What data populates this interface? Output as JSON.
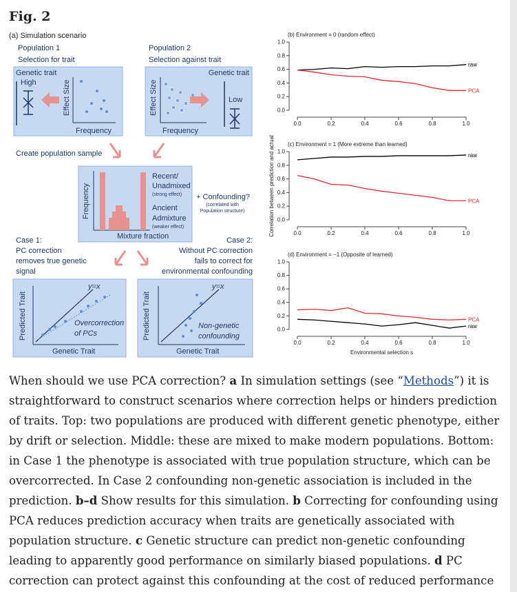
{
  "figure_label": "Fig. 2",
  "diagram": {
    "label": "(a) Simulation scenario",
    "pop1": "Population 1",
    "pop1_sel": "Selection for trait",
    "pop2": "Population 2",
    "pop2_sel": "Selection against trait",
    "b1_trait": "Genetic trait",
    "b1_high": "High",
    "b1_effect": "Effect Size",
    "b1_freq": "Frequency",
    "b2_trait": "Genetic trait",
    "b2_effect": "Effect Size",
    "b2_low": "Low",
    "b2_freq": "Frequency",
    "sample": "Create population sample",
    "m_recent1": "Recent/",
    "m_recent2": "Unadmixed",
    "m_strong": "(strong effect)",
    "m_anc1": "Ancient",
    "m_anc2": "Admixture",
    "m_weak": "(weaker effect)",
    "m_freq": "Frequency",
    "m_mix": "Mixture fraction",
    "conf1": "+ Confounding?",
    "conf2": "(correlated with",
    "conf3": "Population structure)",
    "case1_1": "Case 1:",
    "case1_2": "PC correction",
    "case1_3": "removes true genetic",
    "case1_4": "signal",
    "case2_1": "Case 2:",
    "case2_2": "Without PC correction",
    "case2_3": "fails to correct for",
    "case2_4": "environmental confounding",
    "b4_yx": "y=x",
    "b4_pred": "Predicted Trait",
    "b4_over1": "Overcorrection",
    "b4_over2": "of PCs",
    "b4_gen": "Genetic Trait",
    "b5_yx": "y=x",
    "b5_pred": "Predicted Trait",
    "b5_non1": "Non-genetic",
    "b5_non2": "confounding",
    "b5_gen": "Genetic Trait"
  },
  "chart_data": [
    {
      "type": "line",
      "title": "(b) Environment = 0 (random effect)",
      "x": [
        0,
        0.1,
        0.2,
        0.3,
        0.4,
        0.5,
        0.6,
        0.7,
        0.8,
        0.9,
        1.0
      ],
      "series": [
        {
          "name": "raw",
          "color": "#000000",
          "values": [
            0.59,
            0.6,
            0.62,
            0.61,
            0.64,
            0.63,
            0.64,
            0.64,
            0.65,
            0.65,
            0.67
          ]
        },
        {
          "name": "PCA",
          "color": "#e8292b",
          "values": [
            0.59,
            0.56,
            0.52,
            0.5,
            0.49,
            0.44,
            0.42,
            0.39,
            0.33,
            0.29,
            0.29
          ]
        }
      ],
      "xlim": [
        0,
        1
      ],
      "xticks": [
        {
          "value": 0,
          "label": "0.0"
        },
        {
          "value": 0.2,
          "label": "0.2"
        },
        {
          "value": 0.4,
          "label": "0.4"
        },
        {
          "value": 0.6,
          "label": "0.6"
        },
        {
          "value": 0.8,
          "label": "0.8"
        },
        {
          "value": 1,
          "label": "1.0"
        }
      ],
      "ylim": [
        0,
        1
      ],
      "yticks": [
        {
          "value": 0,
          "label": "0.0"
        },
        {
          "value": 0.2,
          "label": "0.2"
        },
        {
          "value": 0.4,
          "label": "0.4"
        },
        {
          "value": 0.6,
          "label": "0.6"
        },
        {
          "value": 0.8,
          "label": "0.8"
        },
        {
          "value": 1,
          "label": "1.0"
        }
      ]
    },
    {
      "type": "line",
      "title": "(c) Environment = 1 (More extreme than learned)",
      "ylabel": "Correlation between prediction and actual",
      "x": [
        0,
        0.1,
        0.2,
        0.3,
        0.4,
        0.5,
        0.6,
        0.7,
        0.8,
        0.9,
        1.0
      ],
      "series": [
        {
          "name": "raw",
          "color": "#000000",
          "values": [
            0.88,
            0.9,
            0.92,
            0.92,
            0.93,
            0.93,
            0.94,
            0.94,
            0.94,
            0.94,
            0.95
          ]
        },
        {
          "name": "PCA",
          "color": "#e8292b",
          "values": [
            0.65,
            0.6,
            0.52,
            0.51,
            0.46,
            0.42,
            0.39,
            0.36,
            0.33,
            0.28,
            0.28
          ]
        }
      ],
      "xlim": [
        0,
        1
      ],
      "xticks": [
        {
          "value": 0,
          "label": "0.0"
        },
        {
          "value": 0.2,
          "label": "0.2"
        },
        {
          "value": 0.4,
          "label": "0.4"
        },
        {
          "value": 0.6,
          "label": "0.6"
        },
        {
          "value": 0.8,
          "label": "0.8"
        },
        {
          "value": 1,
          "label": "1.0"
        }
      ],
      "ylim": [
        0,
        1
      ],
      "yticks": [
        {
          "value": 0,
          "label": "0.0"
        },
        {
          "value": 0.2,
          "label": "0.2"
        },
        {
          "value": 0.4,
          "label": "0.4"
        },
        {
          "value": 0.6,
          "label": "0.6"
        },
        {
          "value": 0.8,
          "label": "0.8"
        },
        {
          "value": 1,
          "label": "1.0"
        }
      ]
    },
    {
      "type": "line",
      "title": "(d) Environment = −1 (Opposite of learned)",
      "xlabel": "Environmental selection s",
      "x": [
        0,
        0.1,
        0.2,
        0.3,
        0.4,
        0.5,
        0.6,
        0.7,
        0.8,
        0.9,
        1.0
      ],
      "series": [
        {
          "name": "PCA",
          "color": "#e8292b",
          "values": [
            0.29,
            0.3,
            0.28,
            0.32,
            0.24,
            0.23,
            0.2,
            0.18,
            0.15,
            0.14,
            0.15
          ]
        },
        {
          "name": "raw",
          "color": "#000000",
          "values": [
            0.15,
            0.14,
            0.12,
            0.1,
            0.08,
            0.05,
            0.07,
            0.1,
            0.06,
            0.02,
            0.05
          ]
        }
      ],
      "xlim": [
        0,
        1
      ],
      "xticks": [
        {
          "value": 0,
          "label": "0.0"
        },
        {
          "value": 0.2,
          "label": "0.2"
        },
        {
          "value": 0.4,
          "label": "0.4"
        },
        {
          "value": 0.6,
          "label": "0.6"
        },
        {
          "value": 0.8,
          "label": "0.8"
        },
        {
          "value": 1,
          "label": "1.0"
        }
      ],
      "ylim": [
        0,
        1
      ],
      "yticks": [
        {
          "value": 0,
          "label": "0.0"
        },
        {
          "value": 0.2,
          "label": "0.2"
        },
        {
          "value": 0.4,
          "label": "0.4"
        },
        {
          "value": 0.6,
          "label": "0.6"
        },
        {
          "value": 0.8,
          "label": "0.8"
        },
        {
          "value": 1,
          "label": "1.0"
        }
      ]
    }
  ],
  "caption": [
    "When should we use PCA correction? ",
    "a",
    " In simulation settings (see “",
    "Methods",
    "”) it is straightforward to construct scenarios where correction helps or hinders prediction of traits. Top: two populations are produced with different genetic phenotype, either by drift or selection. Middle: these are mixed to make modern populations. Bottom: in Case 1 the phenotype is associated with true population structure, which can be overcorrected. In Case 2 confounding non-genetic association is included in the prediction. ",
    "b–d",
    " Show results for this simulation. ",
    "b",
    " Correcting for confounding using PCA reduces prediction accuracy when traits are genetically associated with population structure. ",
    "c",
    " Genetic structure can predict non-genetic confounding leading to apparently good performance on similarly biased populations. ",
    "d",
    " PC correction can protect against this confounding at the cost of reduced performance"
  ]
}
